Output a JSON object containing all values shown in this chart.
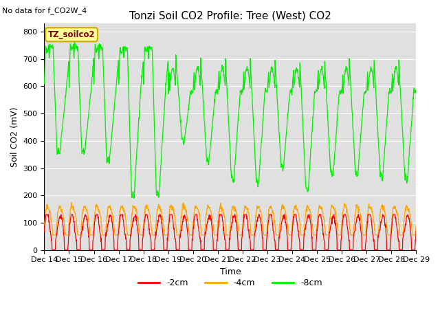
{
  "title": "Tonzi Soil CO2 Profile: Tree (West) CO2",
  "subtitle": "No data for f_CO2W_4",
  "ylabel": "Soil CO2 (mV)",
  "xlabel": "Time",
  "legend_label": "TZ_soilco2",
  "ylim": [
    0,
    830
  ],
  "yticks": [
    0,
    100,
    200,
    300,
    400,
    500,
    600,
    700,
    800
  ],
  "xtick_labels": [
    "Dec 14",
    "Dec 15",
    "Dec 16",
    "Dec 17",
    "Dec 18",
    "Dec 19",
    "Dec 20",
    "Dec 21",
    "Dec 22",
    "Dec 23",
    "Dec 24",
    "Dec 25",
    "Dec 26",
    "Dec 27",
    "Dec 28",
    "Dec 29"
  ],
  "color_2cm": "#ff0000",
  "color_4cm": "#ffa500",
  "color_8cm": "#00ee00",
  "bg_color": "#e0e0e0",
  "grid_color": "#ffffff",
  "legend_box_color": "#ffff99",
  "legend_box_edge": "#ccaa00",
  "title_fontsize": 11,
  "label_fontsize": 9,
  "tick_fontsize": 8
}
